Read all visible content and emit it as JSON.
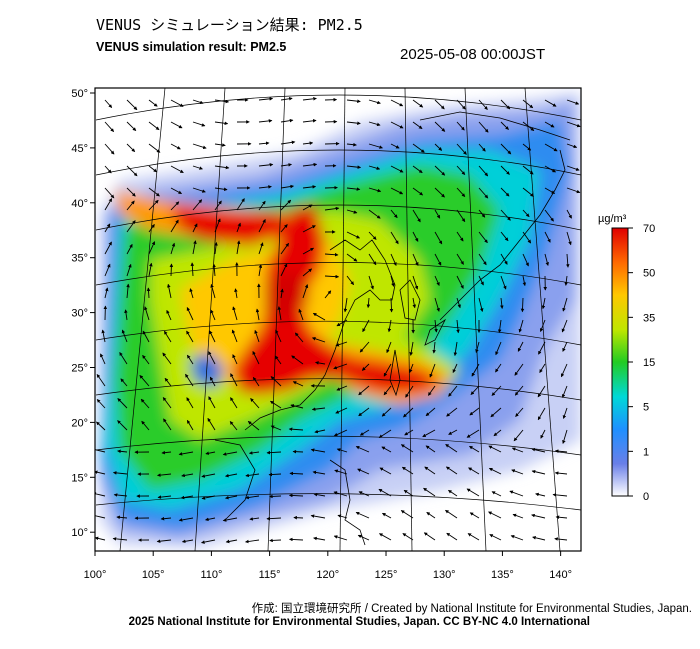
{
  "header": {
    "title_jp": "VENUS シミュレーション結果: PM2.5",
    "title_en": "VENUS simulation result: PM2.5",
    "timestamp": "2025-05-08 00:00JST"
  },
  "map": {
    "lon_ticks": [
      "100°",
      "105°",
      "110°",
      "115°",
      "120°",
      "125°",
      "130°",
      "135°",
      "140°"
    ],
    "lat_ticks": [
      "50°",
      "45°",
      "40°",
      "35°",
      "30°",
      "25°",
      "20°",
      "15°",
      "10°"
    ],
    "lon_range": [
      100,
      141
    ],
    "lat_range": [
      9,
      50
    ]
  },
  "colorbar": {
    "unit": "µg/m³",
    "ticks": [
      "70",
      "50",
      "35",
      "15",
      "5",
      "1",
      "0"
    ],
    "colors": [
      "#ffffff",
      "#6a7fe8",
      "#1e90ff",
      "#00d8d8",
      "#22cc22",
      "#bfe600",
      "#ffc800",
      "#ff6a00",
      "#e00000"
    ]
  },
  "footer": {
    "credit": "作成: 国立環境研究所 / Created by National Institute for Environmental Studies, Japan.",
    "copyright": "2025 National Institute for Environmental Studies, Japan. CC BY-NC 4.0 International"
  }
}
